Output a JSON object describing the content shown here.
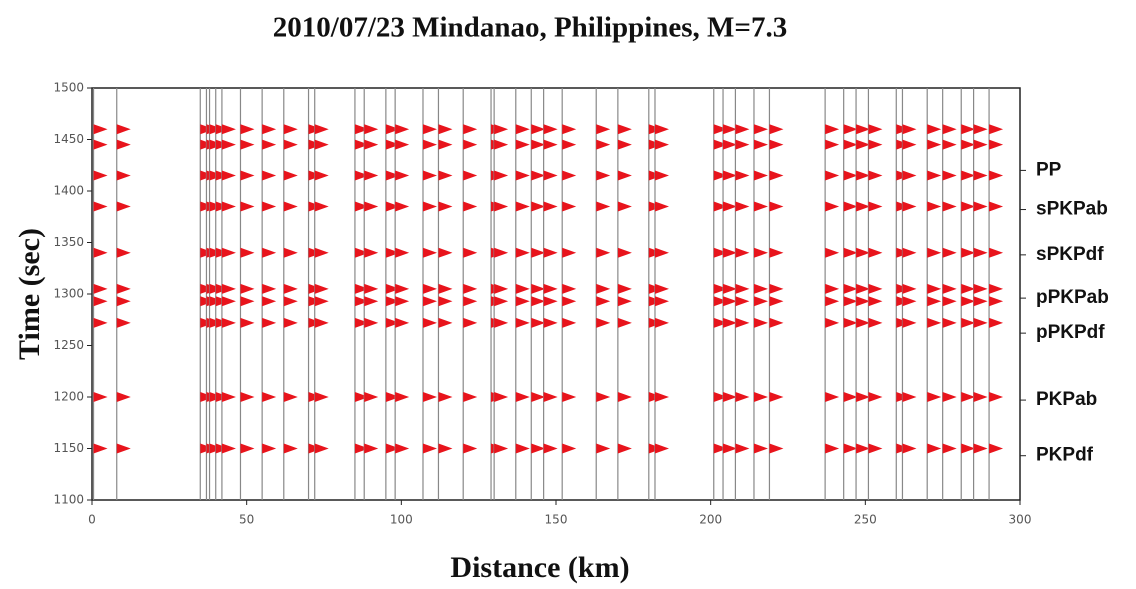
{
  "chart_data": {
    "type": "record-section",
    "title": "2010/07/23 Mindanao, Philippines, M=7.3",
    "x_label": "Distance (km)",
    "y_label": "Time (sec)",
    "xlim": [
      0,
      300
    ],
    "xticks": [
      0,
      50,
      100,
      150,
      200,
      250,
      300
    ],
    "ylim": [
      1100,
      1500
    ],
    "yticks": [
      1100,
      1150,
      1200,
      1250,
      1300,
      1350,
      1400,
      1450,
      1500
    ],
    "stations": [
      0.5,
      8,
      35,
      37,
      38,
      40,
      42,
      48,
      55,
      62,
      70,
      72,
      85,
      88,
      95,
      98,
      107,
      112,
      120,
      129,
      130,
      137,
      142,
      146,
      152,
      163,
      170,
      180,
      182,
      201,
      204,
      208,
      214,
      219,
      237,
      243,
      247,
      251,
      260,
      262,
      270,
      275,
      281,
      285,
      290
    ],
    "arrivals": [
      1460,
      1445,
      1415,
      1385,
      1340,
      1305,
      1293,
      1272,
      1200,
      1150
    ],
    "trace_color": "#888888",
    "pulse_color": "#e8141c",
    "phases": [
      {
        "label": "PP",
        "time": 1420
      },
      {
        "label": "sPKPab",
        "time": 1382
      },
      {
        "label": "sPKPdf",
        "time": 1338
      },
      {
        "label": "pPKPab",
        "time": 1296
      },
      {
        "label": "pPKPdf",
        "time": 1262
      },
      {
        "label": "PKPab",
        "time": 1197
      },
      {
        "label": "PKPdf",
        "time": 1143
      }
    ]
  }
}
